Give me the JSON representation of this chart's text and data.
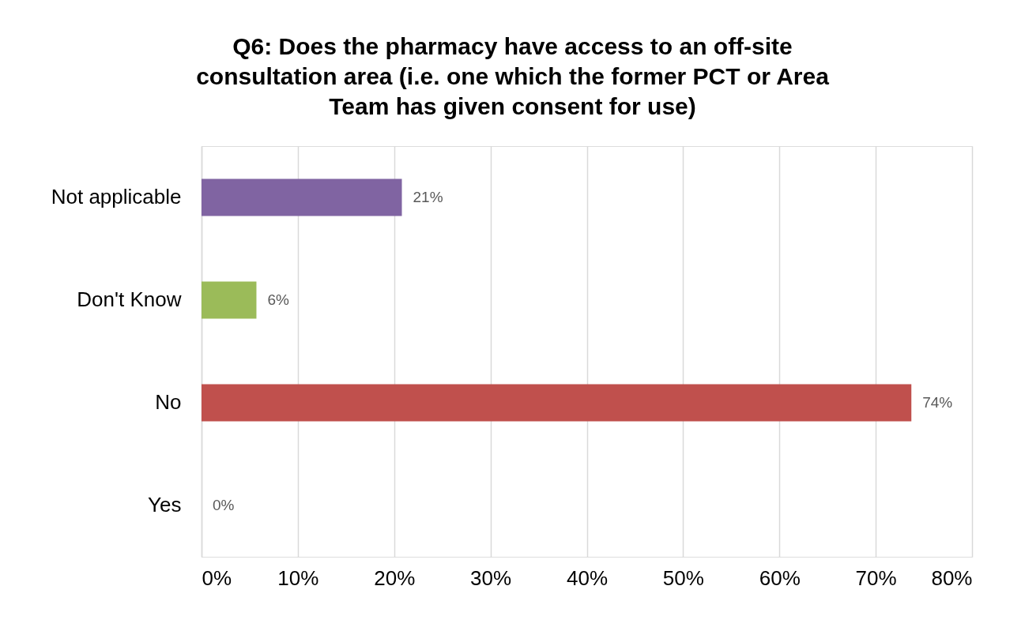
{
  "chart_data": {
    "type": "bar",
    "orientation": "horizontal",
    "title": "Q6: Does the pharmacy have access to an off-site consultation area (i.e. one which the former PCT or Area Team has given consent for use)",
    "categories": [
      "Not applicable",
      "Don't Know",
      "No",
      "Yes"
    ],
    "values": [
      20.8,
      5.7,
      73.7,
      0
    ],
    "value_labels": [
      "21%",
      "6%",
      "74%",
      "0%"
    ],
    "colors": [
      "#8064a2",
      "#9bbb59",
      "#c0504d",
      "#4f81bd"
    ],
    "xlim": [
      0,
      80
    ],
    "xticks": [
      {
        "value": 0,
        "label": "0%"
      },
      {
        "value": 10,
        "label": "10%"
      },
      {
        "value": 20,
        "label": "20%"
      },
      {
        "value": 30,
        "label": "30%"
      },
      {
        "value": 40,
        "label": "40%"
      },
      {
        "value": 50,
        "label": "50%"
      },
      {
        "value": 60,
        "label": "60%"
      },
      {
        "value": 70,
        "label": "70%"
      },
      {
        "value": 80,
        "label": "80%"
      }
    ],
    "grid": "x",
    "legend": false
  }
}
